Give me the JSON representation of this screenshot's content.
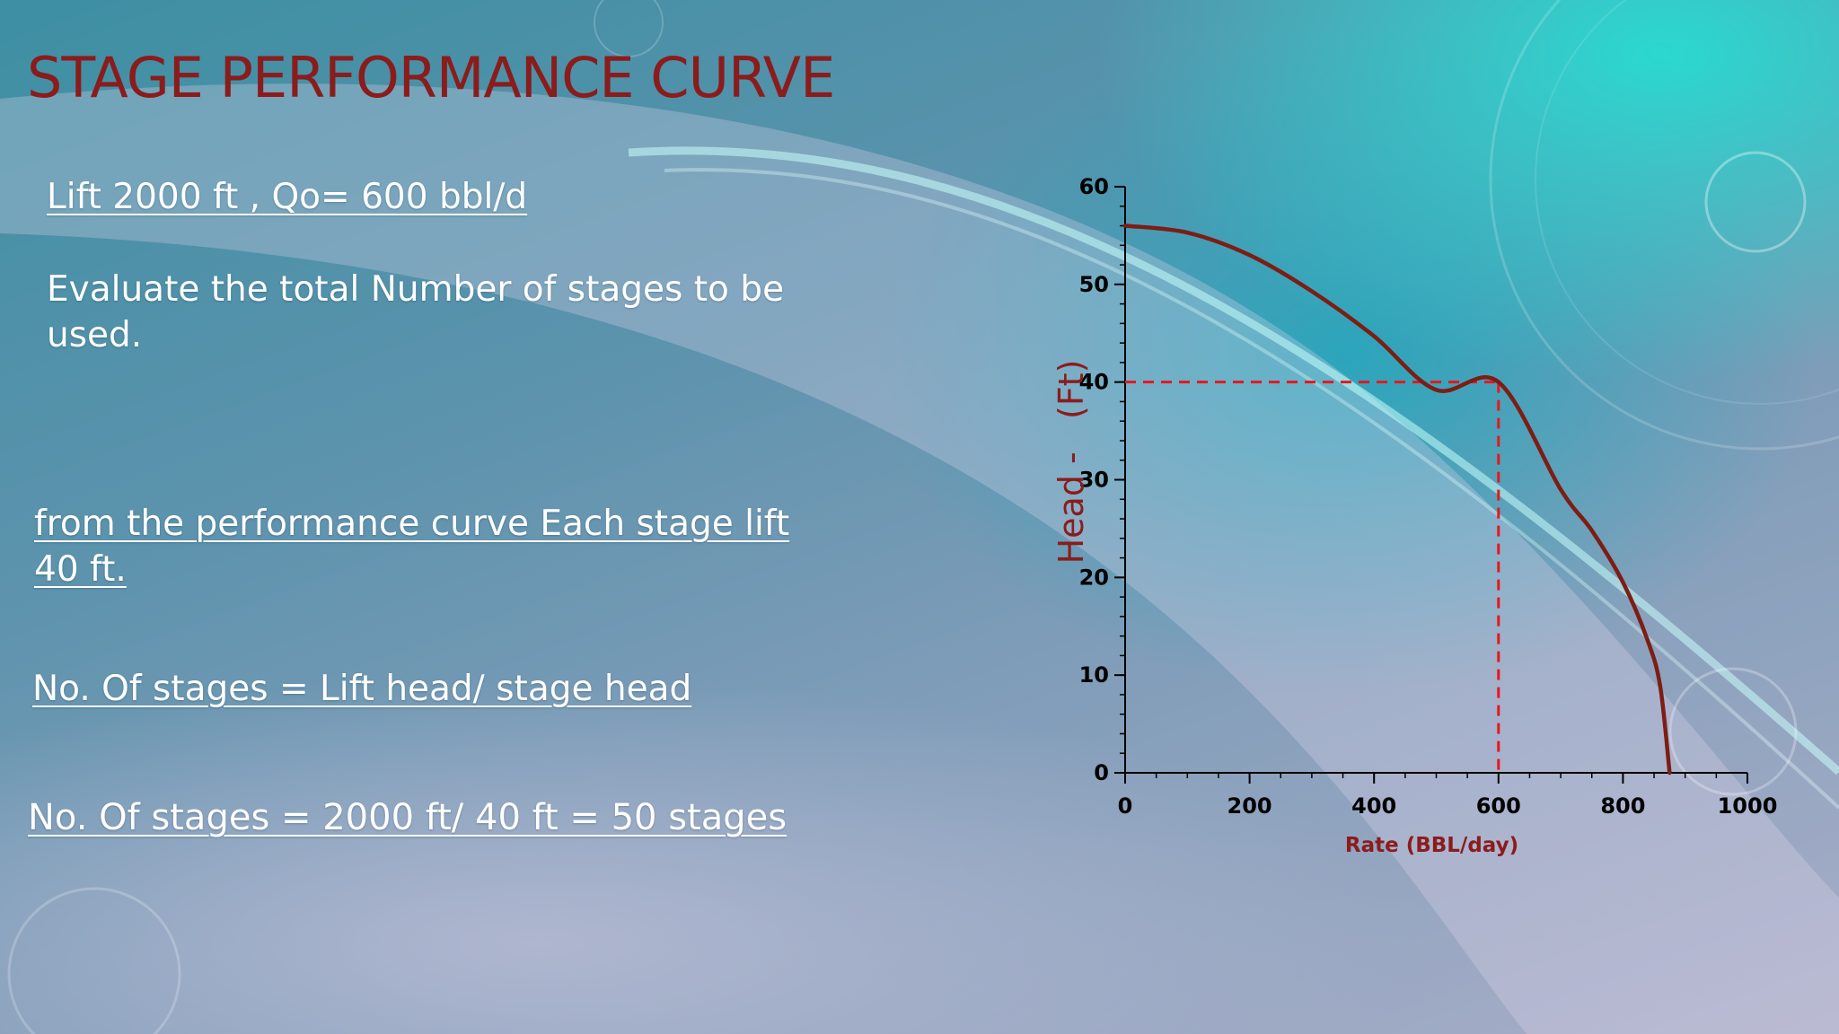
{
  "slide": {
    "title": "STAGE PERFORMANCE CURVE",
    "given": "Lift 2000 ft , Qo= 600 bbl/d",
    "task": "Evaluate the total Number of stages to be used.",
    "finding": "from the performance curve  Each stage lift 40 ft.",
    "formula": "No. Of  stages = Lift head/ stage head",
    "result": "No. Of stages = 2000 ft/ 40 ft = 50 stages"
  },
  "chart_data": {
    "type": "line",
    "title": "",
    "xlabel": "Rate (BBL/day)",
    "ylabel": "Head -   (Ft)",
    "xlim": [
      0,
      1000
    ],
    "ylim": [
      0,
      60
    ],
    "x_ticks": [
      0,
      200,
      400,
      600,
      800,
      1000
    ],
    "y_ticks": [
      0,
      10,
      20,
      30,
      40,
      50,
      60
    ],
    "minor_x_step": 50,
    "minor_y_step": 2,
    "series": [
      {
        "color": "#7d1d14",
        "x": [
          0,
          100,
          200,
          300,
          400,
          500,
          600,
          700,
          750,
          800,
          840,
          860,
          875
        ],
        "y": [
          56,
          55.3,
          53.0,
          49.3,
          44.7,
          39.2,
          40.0,
          29.0,
          24.8,
          19.5,
          13.5,
          8.8,
          0
        ]
      }
    ],
    "reference_lines": [
      {
        "style": "dashed",
        "color": "#e8161b",
        "from": [
          0,
          40
        ],
        "to": [
          600,
          40
        ]
      },
      {
        "style": "dashed",
        "color": "#e8161b",
        "from": [
          600,
          40
        ],
        "to": [
          600,
          0
        ]
      }
    ],
    "colors": {
      "axis_label": "#8b1c1c",
      "tick_label": "#000000",
      "axis_line": "#000000"
    }
  }
}
